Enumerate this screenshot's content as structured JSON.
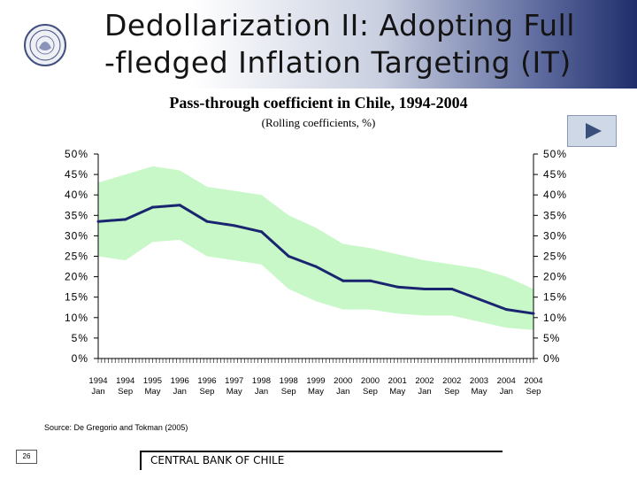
{
  "slide": {
    "title": "Dedollarization II: Adopting Full\n-fledged Inflation Targeting (IT)",
    "page_number": "26",
    "footer": "CENTRAL BANK OF CHILE",
    "source": "Source: De Gregorio and Tokman (2005)",
    "nav_icon": "play-arrow-icon"
  },
  "colors": {
    "line": "#1a2570",
    "band": "#c8f7c8",
    "nav_bg": "#cfd8e6",
    "nav_arrow": "#3a4f7a"
  },
  "chart_data": {
    "type": "line",
    "title": "Pass-through coefficient in Chile, 1994-2004",
    "subtitle": "(Rolling coefficients, %)",
    "ylim": [
      0,
      50
    ],
    "y_ticks": [
      0,
      5,
      10,
      15,
      20,
      25,
      30,
      35,
      40,
      45,
      50
    ],
    "y_tick_labels": [
      "0%",
      "5%",
      "10%",
      "15%",
      "20%",
      "25%",
      "30%",
      "35%",
      "40%",
      "45%",
      "50%"
    ],
    "grid": false,
    "x": [
      "1994-01",
      "1994-09",
      "1995-05",
      "1996-01",
      "1996-09",
      "1997-05",
      "1998-01",
      "1998-09",
      "1999-05",
      "2000-01",
      "2000-09",
      "2001-05",
      "2002-01",
      "2002-09",
      "2003-05",
      "2004-01",
      "2004-09"
    ],
    "x_tick_labels": [
      [
        "1994",
        "Jan"
      ],
      [
        "1994",
        "Sep"
      ],
      [
        "1995",
        "May"
      ],
      [
        "1996",
        "Jan"
      ],
      [
        "1996",
        "Sep"
      ],
      [
        "1997",
        "May"
      ],
      [
        "1998",
        "Jan"
      ],
      [
        "1998",
        "Sep"
      ],
      [
        "1999",
        "May"
      ],
      [
        "2000",
        "Jan"
      ],
      [
        "2000",
        "Sep"
      ],
      [
        "2001",
        "May"
      ],
      [
        "2002",
        "Jan"
      ],
      [
        "2002",
        "Sep"
      ],
      [
        "2003",
        "May"
      ],
      [
        "2004",
        "Jan"
      ],
      [
        "2004",
        "Sep"
      ]
    ],
    "series": [
      {
        "role": "estimate",
        "values": [
          33.5,
          34,
          37,
          37.5,
          33.5,
          32.5,
          31,
          25,
          22.5,
          19,
          19,
          17.5,
          17,
          17,
          14.5,
          12,
          11
        ]
      },
      {
        "role": "upper-band",
        "values": [
          43,
          45,
          47,
          46,
          42,
          41,
          40,
          35,
          32,
          28,
          27,
          25.5,
          24,
          23,
          22,
          20,
          17
        ]
      },
      {
        "role": "lower-band",
        "values": [
          25,
          24,
          28.5,
          29,
          25,
          24,
          23,
          17,
          14,
          12,
          12,
          11,
          10.5,
          10.5,
          9,
          7.5,
          7
        ]
      }
    ]
  }
}
